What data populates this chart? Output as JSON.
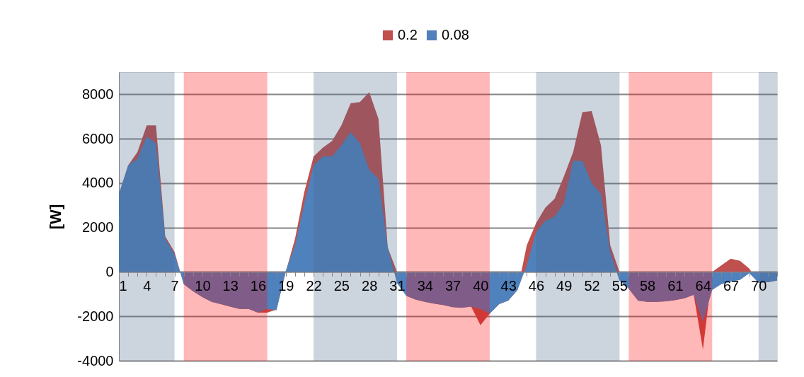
{
  "chart_data": {
    "type": "area",
    "ylabel": "[W]",
    "legend": "top",
    "x": [
      1,
      2,
      3,
      4,
      5,
      6,
      7,
      8,
      9,
      10,
      11,
      12,
      13,
      14,
      15,
      16,
      17,
      18,
      19,
      20,
      21,
      22,
      23,
      24,
      25,
      26,
      27,
      28,
      29,
      30,
      31,
      32,
      33,
      34,
      35,
      36,
      37,
      38,
      39,
      40,
      41,
      42,
      43,
      44,
      45,
      46,
      47,
      48,
      49,
      50,
      51,
      52,
      53,
      54,
      55,
      56,
      57,
      58,
      59,
      60,
      61,
      62,
      63,
      64,
      65,
      66,
      67,
      68,
      69,
      70,
      71,
      72
    ],
    "series": [
      {
        "name": "0.2",
        "color": "#c0504d",
        "values": [
          3500,
          4800,
          5400,
          6600,
          6600,
          1600,
          900,
          -550,
          -870,
          -1130,
          -1350,
          -1450,
          -1560,
          -1670,
          -1670,
          -1830,
          -1830,
          -1700,
          0,
          1500,
          3600,
          5200,
          5600,
          5900,
          6600,
          7600,
          7650,
          8100,
          6900,
          1100,
          0,
          -1080,
          -1240,
          -1350,
          -1430,
          -1490,
          -1590,
          -1610,
          -1560,
          -2400,
          -1880,
          -1450,
          -1290,
          -810,
          1200,
          2200,
          2900,
          3300,
          4300,
          5400,
          7200,
          7250,
          5700,
          1200,
          0,
          -760,
          -1290,
          -1350,
          -1350,
          -1320,
          -1270,
          -1190,
          -1030,
          -3500,
          0,
          300,
          600,
          500,
          150,
          -490,
          -460,
          -380
        ]
      },
      {
        "name": "0.08",
        "color": "#4f81bd",
        "values": [
          3500,
          4800,
          5100,
          6100,
          5800,
          1500,
          800,
          -550,
          -870,
          -1130,
          -1350,
          -1450,
          -1560,
          -1670,
          -1670,
          -1830,
          -1670,
          -1720,
          50,
          1200,
          3100,
          4800,
          5200,
          5200,
          5700,
          6300,
          5800,
          4600,
          4200,
          1100,
          -500,
          -1080,
          -1240,
          -1350,
          -1430,
          -1490,
          -1590,
          -1610,
          -1560,
          -1670,
          -1880,
          -1450,
          -1290,
          -810,
          300,
          1800,
          2300,
          2500,
          3100,
          5000,
          5000,
          4000,
          3500,
          900,
          -400,
          -760,
          -1290,
          -1350,
          -1350,
          -1320,
          -1270,
          -1190,
          -1030,
          -2250,
          -810,
          -550,
          -440,
          -360,
          -60,
          -490,
          -460,
          -380
        ]
      }
    ],
    "xlim": [
      1,
      72
    ],
    "xticks": [
      1,
      {
        "value": 2,
        "label": null
      },
      {
        "value": 3,
        "label": null
      },
      4,
      {
        "value": 5,
        "label": null
      },
      {
        "value": 6,
        "label": null
      },
      7,
      {
        "value": 8,
        "label": null
      },
      {
        "value": 9,
        "label": null
      },
      10,
      {
        "value": 11,
        "label": null
      },
      {
        "value": 12,
        "label": null
      },
      13,
      {
        "value": 14,
        "label": null
      },
      {
        "value": 15,
        "label": null
      },
      16,
      {
        "value": 17,
        "label": null
      },
      {
        "value": 18,
        "label": null
      },
      19,
      {
        "value": 20,
        "label": null
      },
      {
        "value": 21,
        "label": null
      },
      22,
      {
        "value": 23,
        "label": null
      },
      {
        "value": 24,
        "label": null
      },
      25,
      {
        "value": 26,
        "label": null
      },
      {
        "value": 27,
        "label": null
      },
      28,
      {
        "value": 29,
        "label": null
      },
      {
        "value": 30,
        "label": null
      },
      31,
      {
        "value": 32,
        "label": null
      },
      {
        "value": 33,
        "label": null
      },
      34,
      {
        "value": 35,
        "label": null
      },
      {
        "value": 36,
        "label": null
      },
      37,
      {
        "value": 38,
        "label": null
      },
      {
        "value": 39,
        "label": null
      },
      40,
      {
        "value": 41,
        "label": null
      },
      {
        "value": 42,
        "label": null
      },
      43,
      {
        "value": 44,
        "label": null
      },
      {
        "value": 45,
        "label": null
      },
      46,
      {
        "value": 47,
        "label": null
      },
      {
        "value": 48,
        "label": null
      },
      49,
      {
        "value": 50,
        "label": null
      },
      {
        "value": 51,
        "label": null
      },
      52,
      {
        "value": 53,
        "label": null
      },
      {
        "value": 54,
        "label": null
      },
      55,
      {
        "value": 56,
        "label": null
      },
      {
        "value": 57,
        "label": null
      },
      58,
      {
        "value": 59,
        "label": null
      },
      {
        "value": 60,
        "label": null
      },
      61,
      {
        "value": 62,
        "label": null
      },
      {
        "value": 63,
        "label": null
      },
      64,
      {
        "value": 65,
        "label": null
      },
      {
        "value": 66,
        "label": null
      },
      67,
      {
        "value": 68,
        "label": null
      },
      {
        "value": 69,
        "label": null
      },
      70,
      {
        "value": 71,
        "label": null
      },
      {
        "value": 72,
        "label": null
      }
    ],
    "ylim": [
      -4000,
      9000
    ],
    "yticks": [
      -4000,
      -2000,
      0,
      2000,
      4000,
      6000,
      8000
    ],
    "grid": "y",
    "bands": [
      {
        "axis": "x",
        "from": 1,
        "to": 7,
        "color": "#48668a"
      },
      {
        "axis": "x",
        "from": 8,
        "to": 17,
        "color": "#ff0000"
      },
      {
        "axis": "x",
        "from": 22,
        "to": 31,
        "color": "#48668a"
      },
      {
        "axis": "x",
        "from": 32,
        "to": 41,
        "color": "#ff0000"
      },
      {
        "axis": "x",
        "from": 46,
        "to": 55,
        "color": "#48668a"
      },
      {
        "axis": "x",
        "from": 56,
        "to": 65,
        "color": "#ff0000"
      },
      {
        "axis": "x",
        "from": 70,
        "to": 72,
        "color": "#48668a"
      }
    ]
  }
}
